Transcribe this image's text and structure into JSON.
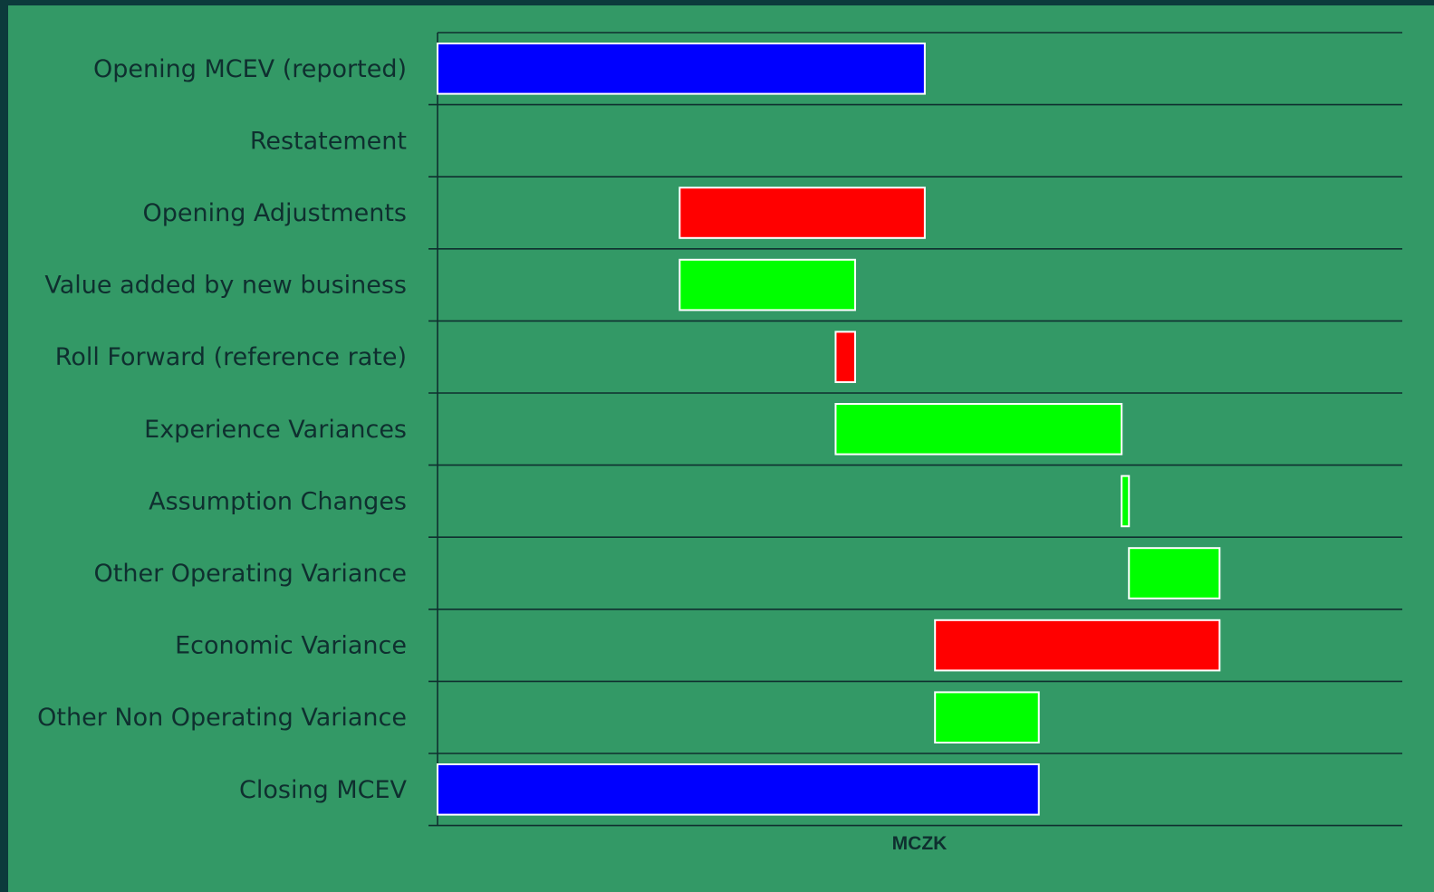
{
  "chart_data": {
    "type": "bar",
    "orientation": "horizontal",
    "subtype": "waterfall",
    "xlabel": "MCZK",
    "grid": true,
    "legend": "none",
    "colors": {
      "total": "#0000ff",
      "decrease": "#ff0000",
      "increase": "#00ff00",
      "background": "#339966",
      "gridline": "#0f2f2f",
      "bar_border": "#ffffff"
    },
    "categories": [
      "Opening MCEV (reported)",
      "Restatement",
      "Opening Adjustments",
      "Value added by new business",
      "Roll Forward (reference rate)",
      "Experience Variances",
      "Assumption Changes",
      "Other Operating Variance",
      "Economic Variance",
      "Other Non Operating Variance",
      "Closing MCEV"
    ],
    "bars": [
      {
        "start": 0,
        "end": 100,
        "kind": "total"
      },
      {
        "start": 100,
        "end": 100,
        "kind": "increase"
      },
      {
        "start": 100,
        "end": 49.7,
        "kind": "decrease"
      },
      {
        "start": 49.7,
        "end": 85.7,
        "kind": "increase"
      },
      {
        "start": 85.7,
        "end": 81.7,
        "kind": "decrease"
      },
      {
        "start": 81.7,
        "end": 140.4,
        "kind": "increase"
      },
      {
        "start": 140.4,
        "end": 141.9,
        "kind": "increase"
      },
      {
        "start": 141.9,
        "end": 160.5,
        "kind": "increase"
      },
      {
        "start": 160.5,
        "end": 102.1,
        "kind": "decrease"
      },
      {
        "start": 102.1,
        "end": 123.4,
        "kind": "increase"
      },
      {
        "start": 0,
        "end": 123.4,
        "kind": "total"
      }
    ],
    "xlim": [
      0,
      198
    ]
  }
}
